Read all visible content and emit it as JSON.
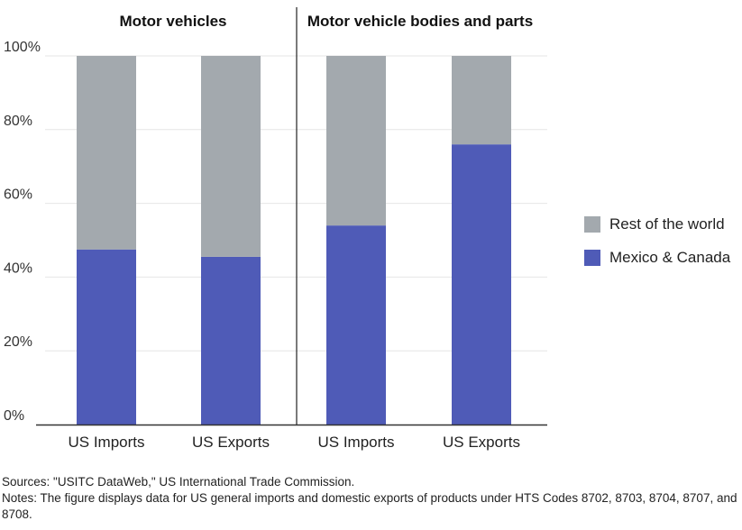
{
  "chart_data": {
    "type": "bar",
    "stacked": true,
    "panels": [
      {
        "title": "Motor vehicles",
        "categories": [
          "US Imports",
          "US Exports"
        ]
      },
      {
        "title": "Motor vehicle bodies and parts",
        "categories": [
          "US Imports",
          "US Exports"
        ]
      }
    ],
    "series": [
      {
        "name": "Mexico & Canada",
        "color": "#4f5bb7",
        "values": [
          47.5,
          45.5,
          54,
          76
        ]
      },
      {
        "name": "Rest of the world",
        "color": "#a3a9ae",
        "values": [
          52.5,
          54.5,
          46,
          24
        ]
      }
    ],
    "ylim": [
      0,
      100
    ],
    "yticks": [
      0,
      20,
      40,
      60,
      80,
      100
    ],
    "ytick_labels": [
      "0%",
      "20%",
      "40%",
      "60%",
      "80%",
      "100%"
    ],
    "legend_position": "right",
    "grid": true
  },
  "legend": {
    "items": [
      {
        "label": "Rest of the world",
        "color": "#a3a9ae"
      },
      {
        "label": "Mexico & Canada",
        "color": "#4f5bb7"
      }
    ]
  },
  "footer": {
    "sources": "Sources: \"USITC DataWeb,\" US International Trade Commission.",
    "notes": "Notes: The figure displays data for US general imports and domestic exports of products under HTS Codes 8702, 8703, 8704, 8707, and 8708."
  }
}
